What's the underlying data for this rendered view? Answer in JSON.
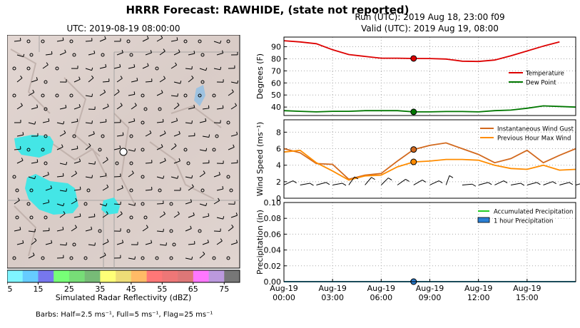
{
  "title": "HRRR Forecast: RAWHIDE, (state not reported)",
  "map": {
    "title": "UTC: 2019-08-19 08:00:00",
    "colorbar_label": "Simulated Radar Reflectivity (dBZ)",
    "colorbar_ticks": [
      "5",
      "15",
      "25",
      "35",
      "45",
      "55",
      "65",
      "75"
    ],
    "colorbar_colors": [
      "#7ff5ff",
      "#66ccff",
      "#7777ee",
      "#77ff77",
      "#77dd77",
      "#77bb77",
      "#ffff77",
      "#eedd77",
      "#ffbb66",
      "#ff7777",
      "#ee7777",
      "#dd7777",
      "#ff77ff",
      "#bb99dd",
      "#777777"
    ],
    "barb_note": "Barbs: Half=2.5 ms⁻¹, Full=5 ms⁻¹, Flag=25 ms⁻¹"
  },
  "run": "Run (UTC): 2019 Aug 18, 23:00 f09",
  "valid": "Valid (UTC): 2019 Aug 19, 08:00",
  "chart_data": [
    {
      "type": "line",
      "ylabel": "Degrees (F)",
      "ylim": [
        33,
        98
      ],
      "yticks": [
        40,
        50,
        60,
        70,
        80,
        90
      ],
      "grid": true,
      "legend": "center-right",
      "x": [
        "00:00",
        "01:00",
        "02:00",
        "03:00",
        "04:00",
        "05:00",
        "06:00",
        "07:00",
        "08:00",
        "09:00",
        "10:00",
        "11:00",
        "12:00",
        "13:00",
        "14:00",
        "15:00",
        "16:00",
        "17:00",
        "18:00"
      ],
      "series": [
        {
          "name": "Temperature",
          "color": "#dd0000",
          "values": [
            95,
            94,
            92.5,
            87.5,
            83.5,
            82,
            80.5,
            80.5,
            80.3,
            80.2,
            79.8,
            78,
            77.8,
            79,
            82.5,
            86.5,
            90.5,
            94,
            null
          ]
        },
        {
          "name": "Dew Point",
          "color": "#007700",
          "values": [
            37,
            36.5,
            36,
            36.5,
            36.5,
            37,
            37,
            37,
            36,
            36,
            36.3,
            36.3,
            36,
            37,
            37.5,
            39,
            41,
            40.5,
            40
          ]
        }
      ],
      "highlight_index": 8
    },
    {
      "type": "line",
      "ylabel": "Wind Speed (ms⁻¹)",
      "ylim": [
        0,
        9.5
      ],
      "yticks": [
        0,
        2,
        4,
        6,
        8
      ],
      "grid": true,
      "legend": "top-right",
      "x": [
        "00:00",
        "01:00",
        "02:00",
        "03:00",
        "04:00",
        "05:00",
        "06:00",
        "07:00",
        "08:00",
        "09:00",
        "10:00",
        "11:00",
        "12:00",
        "13:00",
        "14:00",
        "15:00",
        "16:00",
        "17:00",
        "18:00"
      ],
      "series": [
        {
          "name": "Instantaneous Wind Gust",
          "color": "#d2691e",
          "values": [
            6,
            5.5,
            4.2,
            4.1,
            2.3,
            2.8,
            3.0,
            4.5,
            5.9,
            6.4,
            6.7,
            6.0,
            5.3,
            4.3,
            4.8,
            5.8,
            4.3,
            5.2,
            6.0
          ]
        },
        {
          "name": "Previous Hour Max Wind",
          "color": "#ff8c00",
          "values": [
            5.6,
            5.8,
            4.3,
            3.3,
            2.2,
            2.7,
            2.8,
            3.8,
            4.4,
            4.5,
            4.7,
            4.7,
            4.6,
            4.0,
            3.6,
            3.5,
            4.0,
            3.4,
            3.5
          ]
        }
      ],
      "highlight_index": 8,
      "barbs": [
        {
          "angle": -20,
          "full": 1,
          "half": 0
        },
        {
          "angle": -35,
          "full": 0,
          "half": 1
        },
        {
          "angle": -30,
          "full": 0,
          "half": 1
        },
        {
          "angle": -35,
          "full": 0,
          "half": 1
        },
        {
          "angle": 10,
          "full": 0,
          "half": 1
        },
        {
          "angle": 5,
          "full": 0,
          "half": 1
        },
        {
          "angle": 0,
          "full": 0,
          "half": 1
        },
        {
          "angle": -10,
          "full": 0,
          "half": 1
        },
        {
          "angle": -15,
          "full": 0,
          "half": 1
        },
        {
          "angle": -20,
          "full": 0,
          "half": 1
        },
        {
          "angle": 25,
          "full": 0,
          "half": 1
        },
        {
          "angle": -40,
          "full": 0,
          "half": 1
        },
        {
          "angle": -30,
          "full": 0,
          "half": 1
        },
        {
          "angle": -20,
          "full": 0,
          "half": 1
        },
        {
          "angle": -35,
          "full": 0,
          "half": 1
        },
        {
          "angle": -30,
          "full": 0,
          "half": 1
        },
        {
          "angle": -25,
          "full": 0,
          "half": 1
        },
        {
          "angle": -30,
          "full": 0,
          "half": 1
        },
        {
          "angle": -30,
          "full": 0,
          "half": 1
        }
      ]
    },
    {
      "type": "line",
      "ylabel": "Precipitation (in)",
      "ylim": [
        0,
        0.1
      ],
      "yticks": [
        "0.00",
        "0.02",
        "0.04",
        "0.06",
        "0.08",
        "0.10"
      ],
      "grid": true,
      "legend": "top-right",
      "x": [
        "00:00",
        "01:00",
        "02:00",
        "03:00",
        "04:00",
        "05:00",
        "06:00",
        "07:00",
        "08:00",
        "09:00",
        "10:00",
        "11:00",
        "12:00",
        "13:00",
        "14:00",
        "15:00",
        "16:00",
        "17:00",
        "18:00"
      ],
      "xtick_labels": [
        [
          "Aug-19",
          "00:00"
        ],
        [
          "Aug-19",
          "03:00"
        ],
        [
          "Aug-19",
          "06:00"
        ],
        [
          "Aug-19",
          "09:00"
        ],
        [
          "Aug-19",
          "12:00"
        ],
        [
          "Aug-19",
          "15:00"
        ]
      ],
      "series": [
        {
          "name": "Accumulated Precipitation",
          "color": "#22cc22",
          "values": [
            0,
            0,
            0,
            0,
            0,
            0,
            0,
            0,
            0,
            0,
            0,
            0,
            0,
            0,
            0,
            0,
            0,
            0,
            0
          ]
        },
        {
          "name": "1 hour Precipitation",
          "color": "#2a7fd4",
          "values": [
            0,
            0,
            0,
            0,
            0,
            0,
            0,
            0,
            0,
            0,
            0,
            0,
            0,
            0,
            0,
            0,
            0,
            0,
            0
          ]
        }
      ],
      "highlight_index": 8
    }
  ]
}
